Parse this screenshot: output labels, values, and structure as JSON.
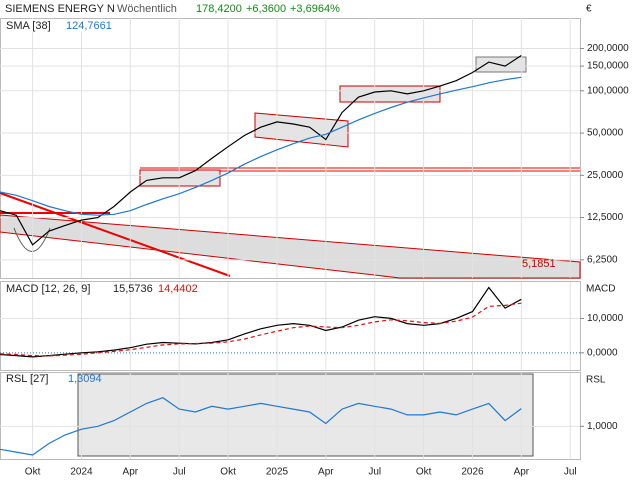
{
  "chart_data": [
    {
      "type": "line",
      "title": "SIEMENS ENERGY N",
      "subtitle": "Wöchentlich",
      "last": "178,4200",
      "change": "+6,3600",
      "change_pct": "+3,6964%",
      "unit": "€",
      "log_scale": true,
      "grid": true,
      "x": [
        -5,
        -4,
        -3,
        -2,
        -1,
        0,
        1,
        2,
        3,
        4,
        5,
        6,
        7,
        8,
        9,
        10,
        11,
        12,
        13,
        14,
        15,
        16,
        17,
        18,
        19,
        20,
        21,
        22,
        23,
        24,
        25,
        26,
        27
      ],
      "xlim": [
        -5,
        30.6
      ],
      "ylim": [
        4.64,
        330
      ],
      "yticks": [
        {
          "value": 6.25,
          "label": "6,2500"
        },
        {
          "value": 12.5,
          "label": "12,5000"
        },
        {
          "value": 25,
          "label": "25,0000"
        },
        {
          "value": 50,
          "label": "50,0000"
        },
        {
          "value": 100,
          "label": "100,0000"
        },
        {
          "value": 150,
          "label": "150,0000"
        },
        {
          "value": 200,
          "label": "200,0000"
        }
      ],
      "series": [
        {
          "color": "#000000",
          "values": [
            14,
            13,
            8,
            10,
            11,
            12,
            12.5,
            15,
            19,
            23,
            24,
            24,
            27,
            33,
            40,
            48,
            55,
            60,
            58,
            55,
            45,
            70,
            90,
            98,
            100,
            95,
            100,
            108,
            118,
            135,
            160,
            150,
            178.42
          ]
        },
        {
          "name": "SMA [38]",
          "value_label": "124,7661",
          "color": "#1f78d1",
          "values": [
            19,
            18,
            16.5,
            15,
            14,
            13.2,
            13,
            13.2,
            14,
            15.5,
            17,
            18.5,
            20.5,
            23,
            26,
            30,
            34,
            38,
            42,
            46,
            49,
            55,
            62,
            69,
            76,
            83,
            89,
            95,
            101,
            107,
            114,
            120,
            124.7661
          ]
        }
      ],
      "annotations": [
        "5,1851"
      ]
    },
    {
      "type": "line",
      "title": "MACD [12, 26, 9]",
      "axis_label": "MACD",
      "grid": true,
      "x": [
        -5,
        -4,
        -3,
        -2,
        -1,
        0,
        1,
        2,
        3,
        4,
        5,
        6,
        7,
        8,
        9,
        10,
        11,
        12,
        13,
        14,
        15,
        16,
        17,
        18,
        19,
        20,
        21,
        22,
        23,
        24,
        25,
        26,
        27
      ],
      "xlim": [
        -5,
        30.6
      ],
      "ylim": [
        -5,
        20.6
      ],
      "yticks": [
        {
          "value": 0,
          "label": "0,0000"
        },
        {
          "value": 10,
          "label": "10,0000"
        }
      ],
      "series": [
        {
          "value_label": "15,5736",
          "color": "#000000",
          "values": [
            -0.5,
            -0.8,
            -1.2,
            -0.8,
            -0.4,
            0,
            0.3,
            0.8,
            1.5,
            2.5,
            3,
            2.8,
            2.6,
            3,
            3.8,
            5.5,
            7,
            8,
            8.5,
            8,
            6.5,
            7.5,
            9.5,
            10.5,
            10,
            8.5,
            8,
            8.5,
            10,
            12,
            19,
            13,
            15.5736
          ]
        },
        {
          "value_label": "14,4402",
          "color": "#e01010",
          "dashed": true,
          "values": [
            -0.3,
            -0.5,
            -0.8,
            -0.9,
            -0.7,
            -0.4,
            0,
            0.4,
            0.9,
            1.6,
            2.3,
            2.6,
            2.7,
            2.8,
            3.2,
            4,
            5.2,
            6.3,
            7.3,
            7.8,
            7.5,
            7.3,
            8,
            9,
            9.6,
            9.3,
            8.8,
            8.6,
            9.2,
            10.4,
            13.5,
            13.8,
            14.4402
          ]
        }
      ]
    },
    {
      "type": "line",
      "title": "RSL [27]",
      "axis_label": "RSL",
      "grid": true,
      "x": [
        -5,
        -4,
        -3,
        -2,
        -1,
        0,
        1,
        2,
        3,
        4,
        5,
        6,
        7,
        8,
        9,
        10,
        11,
        12,
        13,
        14,
        15,
        16,
        17,
        18,
        19,
        20,
        21,
        22,
        23,
        24,
        25,
        26,
        27
      ],
      "xlim": [
        -5,
        30.6
      ],
      "ylim": [
        0.43,
        1.93
      ],
      "yticks": [
        {
          "value": 1,
          "label": "1,0000"
        }
      ],
      "xticks": [
        {
          "value": -3,
          "label": "Okt"
        },
        {
          "value": 0,
          "label": "2024"
        },
        {
          "value": 3,
          "label": "Apr"
        },
        {
          "value": 6,
          "label": "Jul"
        },
        {
          "value": 9,
          "label": "Okt"
        },
        {
          "value": 12,
          "label": "2025"
        },
        {
          "value": 15,
          "label": "Apr"
        },
        {
          "value": 18,
          "label": "Jul"
        },
        {
          "value": 21,
          "label": "Okt"
        },
        {
          "value": 24,
          "label": "2026"
        },
        {
          "value": 27,
          "label": "Apr"
        },
        {
          "value": 30,
          "label": "Jul"
        }
      ],
      "series": [
        {
          "value_label": "1,3094",
          "color": "#1f78d1",
          "values": [
            0.6,
            0.55,
            0.5,
            0.7,
            0.85,
            0.95,
            1.0,
            1.1,
            1.25,
            1.4,
            1.5,
            1.3,
            1.25,
            1.35,
            1.3,
            1.35,
            1.4,
            1.35,
            1.3,
            1.25,
            1.05,
            1.3,
            1.4,
            1.35,
            1.3,
            1.2,
            1.2,
            1.25,
            1.2,
            1.3,
            1.4,
            1.1,
            1.3094
          ]
        }
      ]
    }
  ]
}
